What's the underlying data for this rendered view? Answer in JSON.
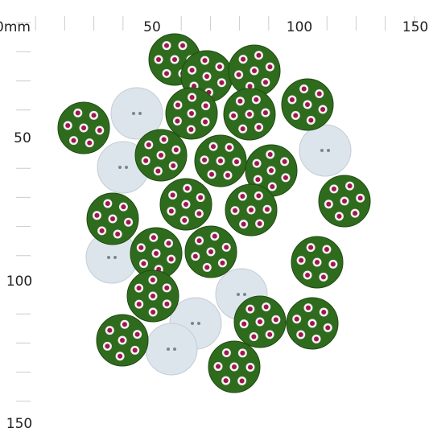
{
  "ruler": {
    "origin_label": "0mm",
    "top_labels": [
      "50",
      "100",
      "150"
    ],
    "left_labels": [
      "50",
      "100",
      "150"
    ]
  }
}
